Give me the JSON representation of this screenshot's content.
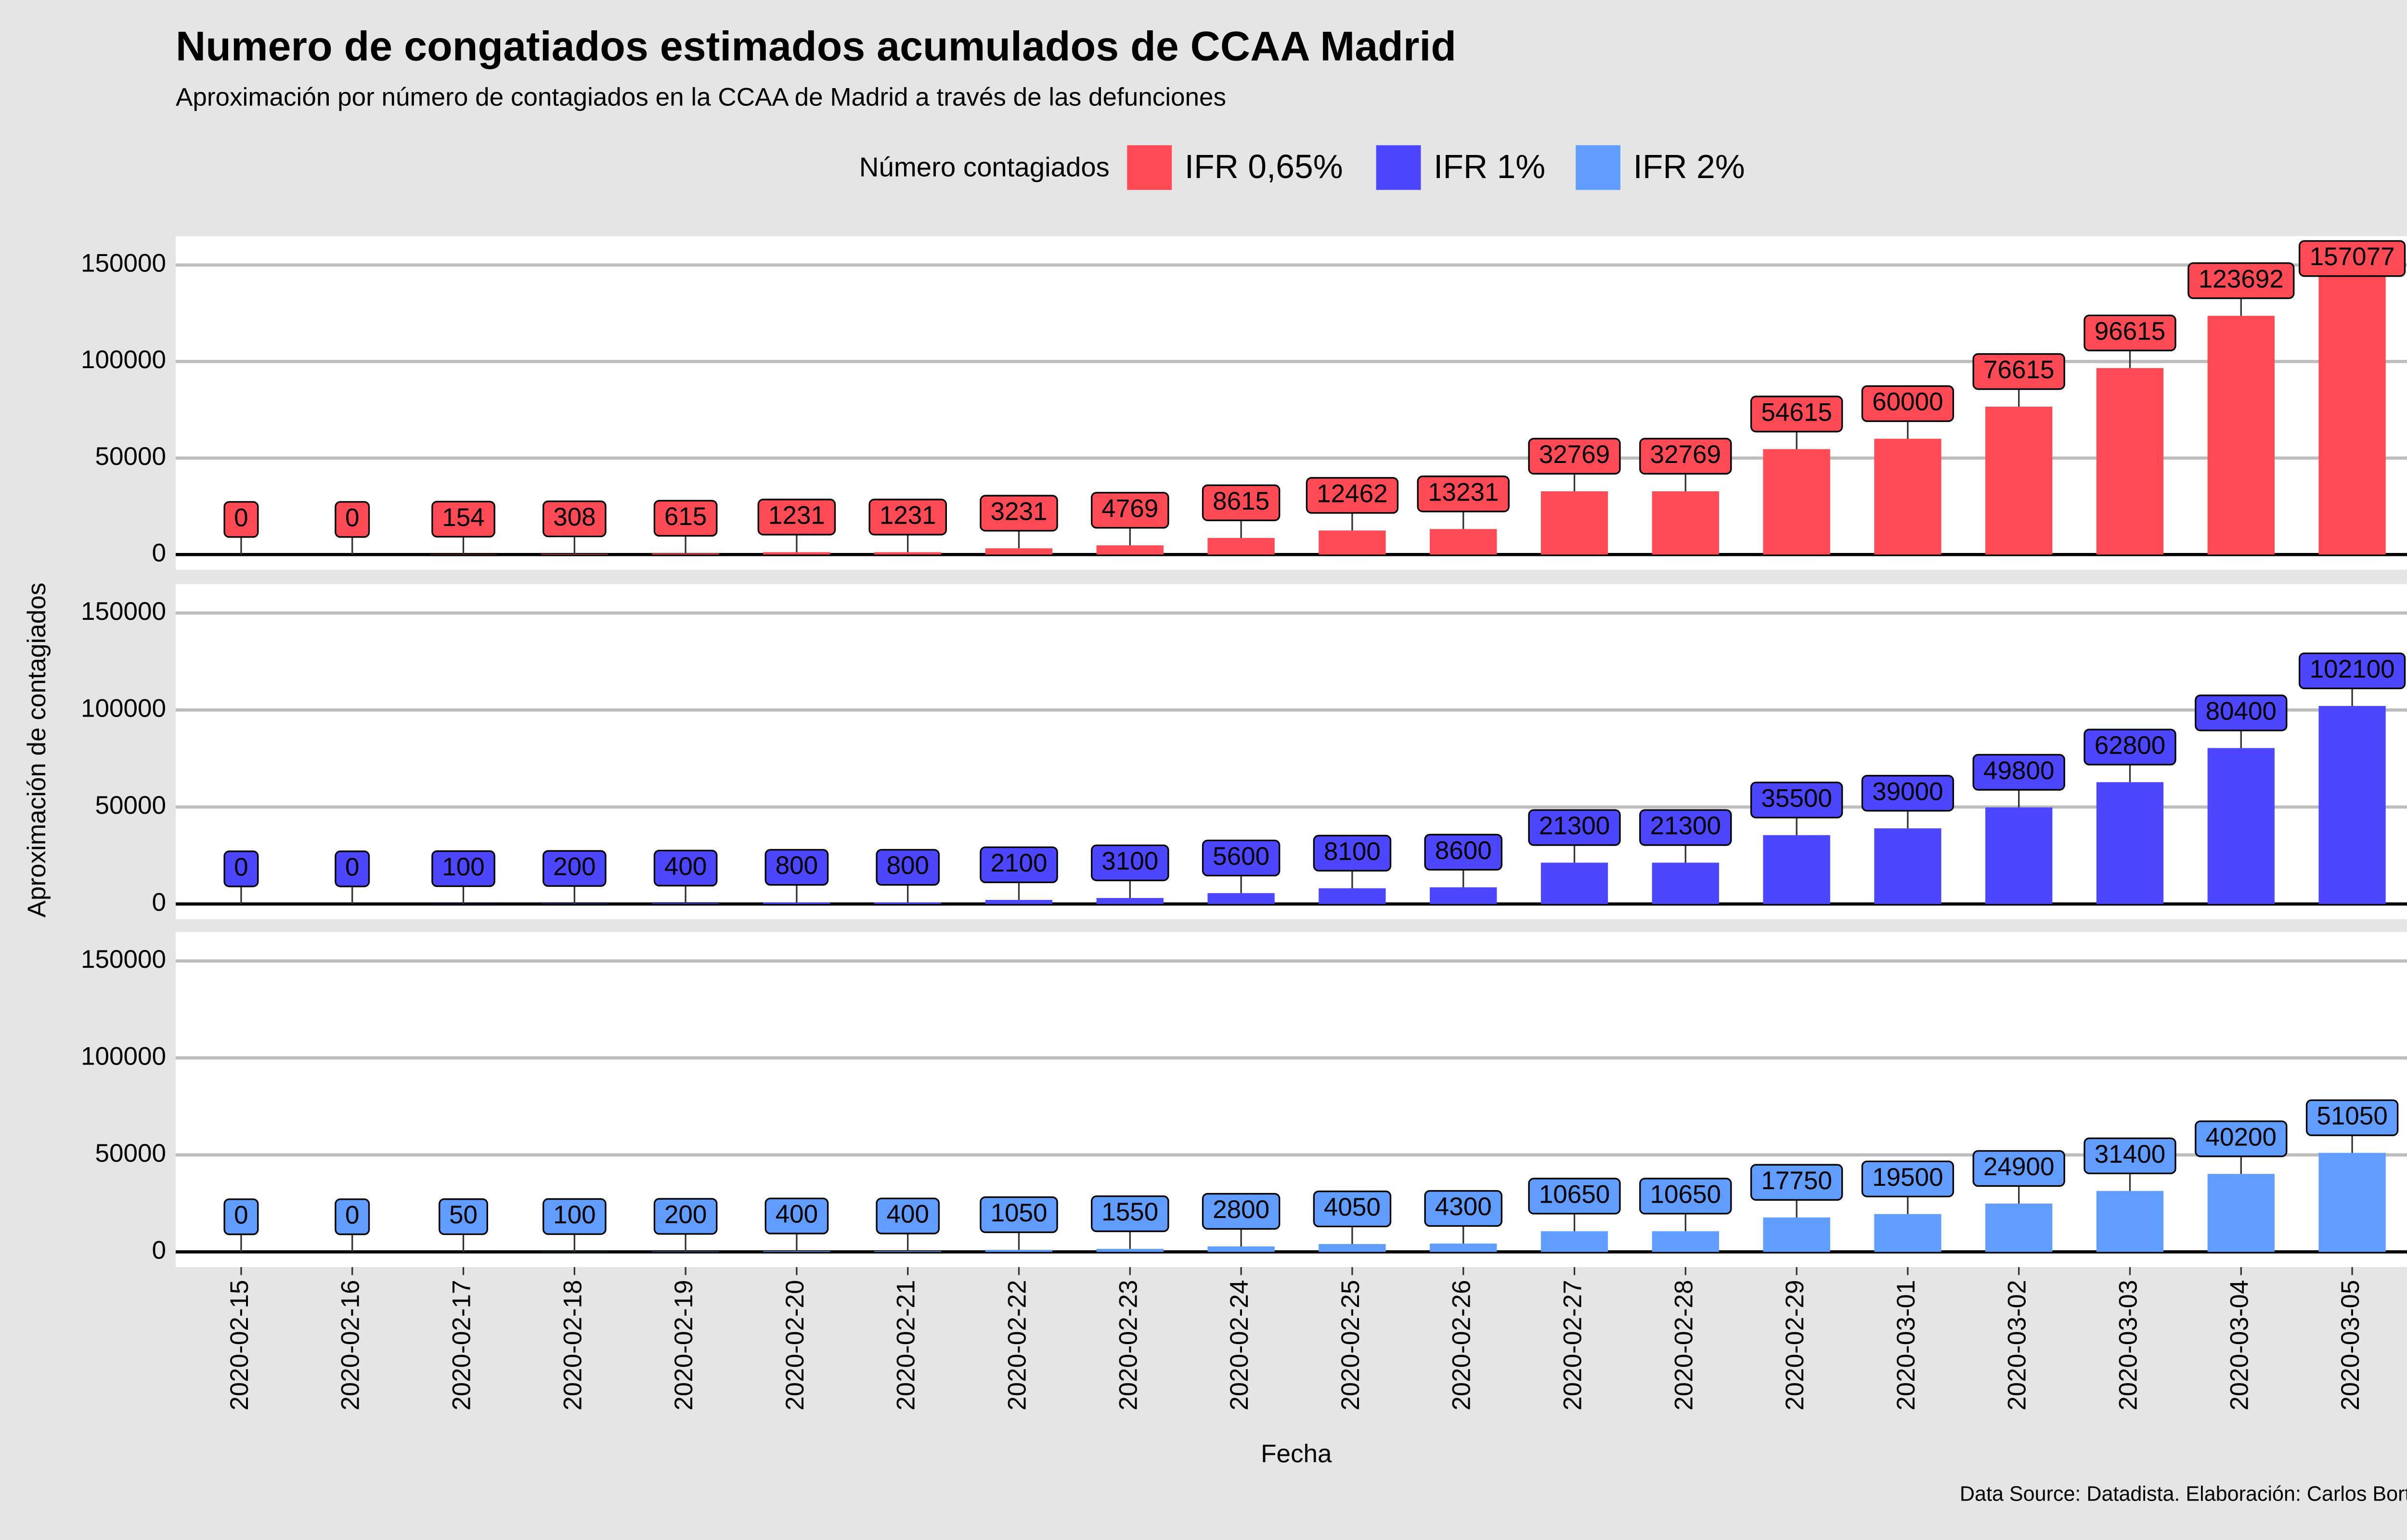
{
  "title": "Numero de congatiados estimados acumulados de CCAA Madrid",
  "subtitle": "Aproximación por número de contagiados en la CCAA de Madrid a través de las defunciones",
  "legend_title": "Número contagiados",
  "y_label": "Aproximación de contagiados",
  "x_label": "Fecha",
  "caption": "Data Source: Datadista. Elaboración: Carlos Bort",
  "categories": [
    "2020-02-15",
    "2020-02-16",
    "2020-02-17",
    "2020-02-18",
    "2020-02-19",
    "2020-02-20",
    "2020-02-21",
    "2020-02-22",
    "2020-02-23",
    "2020-02-24",
    "2020-02-25",
    "2020-02-26",
    "2020-02-27",
    "2020-02-28",
    "2020-02-29",
    "2020-03-01",
    "2020-03-02",
    "2020-03-03",
    "2020-03-04",
    "2020-03-05"
  ],
  "chart_data": [
    {
      "type": "bar",
      "strip": "A - IFR 0,65%",
      "ylim": [
        -7854,
        164931
      ],
      "yticks": [
        0,
        50000,
        100000,
        150000
      ],
      "grid": true,
      "series": [
        {
          "name": "IFR 0,65%",
          "color": "#fe4a55",
          "values": [
            0,
            0,
            154,
            308,
            615,
            1231,
            1231,
            3231,
            4769,
            8615,
            12462,
            13231,
            32769,
            32769,
            54615,
            60000,
            76615,
            96615,
            123692,
            157077
          ]
        }
      ]
    },
    {
      "type": "bar",
      "strip": "B - IFR 1%",
      "ylim": [
        -7854,
        164931
      ],
      "yticks": [
        0,
        50000,
        100000,
        150000
      ],
      "grid": true,
      "series": [
        {
          "name": "IFR 1%",
          "color": "#4c46ff",
          "values": [
            0,
            0,
            100,
            200,
            400,
            800,
            800,
            2100,
            3100,
            5600,
            8100,
            8600,
            21300,
            21300,
            35500,
            39000,
            49800,
            62800,
            80400,
            102100
          ]
        }
      ]
    },
    {
      "type": "bar",
      "strip": "C - IFR 2%",
      "ylim": [
        -7854,
        164931
      ],
      "yticks": [
        0,
        50000,
        100000,
        150000
      ],
      "grid": true,
      "series": [
        {
          "name": "IFR 2%",
          "color": "#619dff",
          "values": [
            0,
            0,
            50,
            100,
            200,
            400,
            400,
            1050,
            1550,
            2800,
            4050,
            4300,
            10650,
            10650,
            17750,
            19500,
            24900,
            31400,
            40200,
            51050
          ]
        }
      ]
    }
  ]
}
